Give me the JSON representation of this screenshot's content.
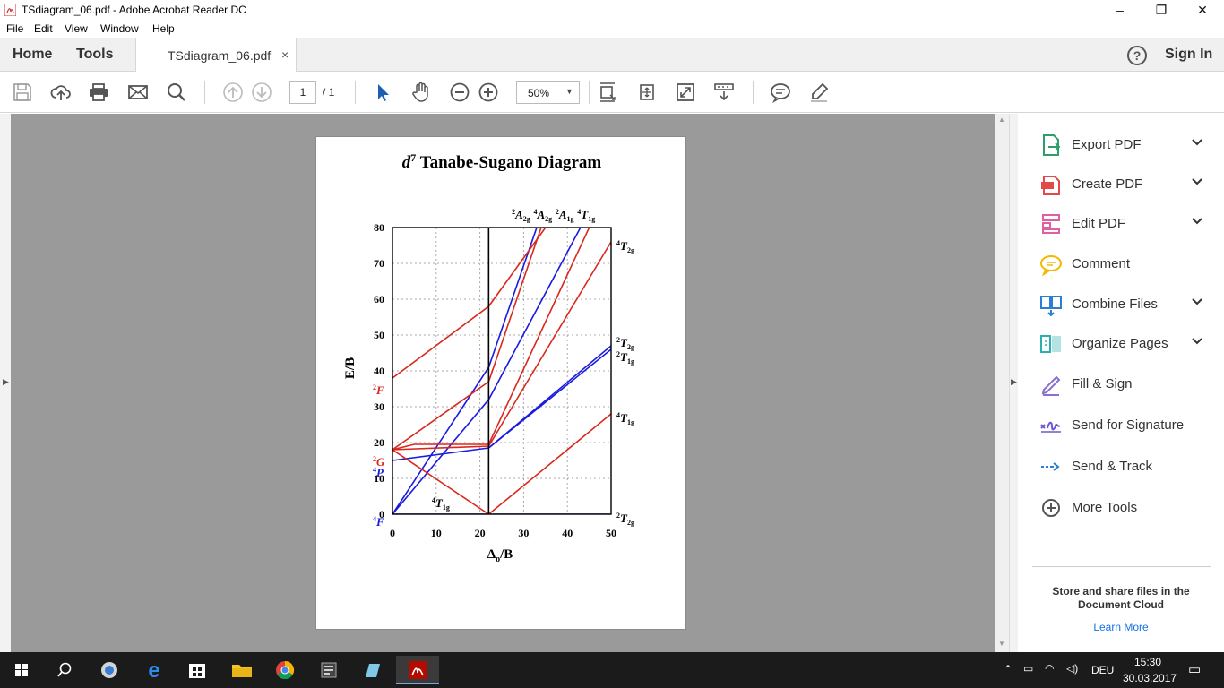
{
  "window": {
    "title": "TSdiagram_06.pdf - Adobe Acrobat Reader DC",
    "minimize": "–",
    "restore": "❐",
    "close": "✕"
  },
  "menu": [
    "File",
    "Edit",
    "View",
    "Window",
    "Help"
  ],
  "tabs": {
    "home": "Home",
    "tools": "Tools",
    "document": "TSdiagram_06.pdf",
    "close": "×",
    "help": "?",
    "signin": "Sign In"
  },
  "toolbar": {
    "page_current": "1",
    "page_total": "/ 1",
    "zoom": "50%",
    "icons": [
      "save-icon",
      "cloud-upload-icon",
      "print-icon",
      "email-icon",
      "search-icon",
      "prev-page-icon",
      "next-page-icon",
      "select-cursor-icon",
      "hand-icon",
      "zoom-out-icon",
      "zoom-in-icon",
      "fit-page-icon",
      "full-screen-icon",
      "read-mode-icon",
      "scroll-mode-icon",
      "comment-icon",
      "highlight-icon"
    ]
  },
  "document": {
    "title_italic": "d",
    "title_super": "7",
    "title_rest": " Tanabe-Sugano Diagram",
    "ylabel": "E/B",
    "xlabel": "Δ",
    "xlabel_sub": "o",
    "xlabel_rest": "/B"
  },
  "chart_data": {
    "type": "line",
    "title": "d7 Tanabe-Sugano Diagram",
    "xlabel": "Δo/B",
    "ylabel": "E/B",
    "xlim": [
      0,
      50
    ],
    "ylim": [
      0,
      80
    ],
    "xticks": [
      0,
      10,
      20,
      30,
      40,
      50
    ],
    "yticks": [
      0,
      10,
      20,
      30,
      40,
      50,
      60,
      70,
      80
    ],
    "grid": true,
    "critical_x": 22,
    "free_ion_terms": [
      {
        "sym": "F",
        "mult": "2",
        "y": 38,
        "color": "#d9281c"
      },
      {
        "sym": "G",
        "mult": "2",
        "y": 18,
        "color": "#d9281c"
      },
      {
        "sym": "P",
        "mult": "4",
        "y": 15,
        "color": "#1a1ae0"
      },
      {
        "sym": "F",
        "mult": "4",
        "y": 0,
        "color": "#1a1ae0"
      }
    ],
    "inner_labels": [
      {
        "mult": "4",
        "sym": "T",
        "sub": "1g",
        "x": 9,
        "y": 2,
        "color": "#000"
      }
    ],
    "right_labels": [
      {
        "mult": "2",
        "sym": "A",
        "sub": "2g",
        "pos": "top-1"
      },
      {
        "mult": "4",
        "sym": "A",
        "sub": "2g",
        "pos": "top-2"
      },
      {
        "mult": "2",
        "sym": "A",
        "sub": "1g",
        "pos": "top-3"
      },
      {
        "mult": "4",
        "sym": "T",
        "sub": "1g",
        "pos": "top-4"
      },
      {
        "mult": "4",
        "sym": "T",
        "sub": "2g",
        "y": 75
      },
      {
        "mult": "2",
        "sym": "T",
        "sub": "2g",
        "y": 48
      },
      {
        "mult": "2",
        "sym": "T",
        "sub": "1g",
        "y": 44
      },
      {
        "mult": "4",
        "sym": "T",
        "sub": "1g",
        "y": 27
      },
      {
        "mult": "2",
        "sym": "T",
        "sub": "2g",
        "y": -1
      }
    ],
    "series": [
      {
        "color": "#1a1ae0",
        "points": [
          [
            0,
            0
          ],
          [
            50,
            0
          ]
        ]
      },
      {
        "color": "#1a1ae0",
        "points": [
          [
            0,
            0
          ],
          [
            22,
            41
          ],
          [
            33,
            80
          ]
        ]
      },
      {
        "color": "#1a1ae0",
        "points": [
          [
            0,
            15
          ],
          [
            22,
            18.5
          ],
          [
            50,
            47
          ]
        ]
      },
      {
        "color": "#1a1ae0",
        "points": [
          [
            0,
            0
          ],
          [
            22,
            32
          ],
          [
            43,
            80
          ]
        ]
      },
      {
        "color": "#1a1ae0",
        "points": [
          [
            22,
            18.5
          ],
          [
            50,
            46
          ]
        ]
      },
      {
        "color": "#d9281c",
        "points": [
          [
            0,
            38
          ],
          [
            22,
            58
          ],
          [
            35,
            80
          ]
        ]
      },
      {
        "color": "#d9281c",
        "points": [
          [
            0,
            18
          ],
          [
            22,
            37
          ],
          [
            34,
            80
          ]
        ]
      },
      {
        "color": "#d9281c",
        "points": [
          [
            0,
            18
          ],
          [
            22,
            0
          ],
          [
            50,
            28
          ]
        ]
      },
      {
        "color": "#d9281c",
        "points": [
          [
            0,
            18
          ],
          [
            5,
            19.5
          ],
          [
            22,
            19.5
          ],
          [
            45,
            80
          ]
        ]
      },
      {
        "color": "#d9281c",
        "points": [
          [
            0,
            18
          ],
          [
            22,
            19
          ],
          [
            50,
            76
          ]
        ]
      }
    ]
  },
  "sidebar": {
    "items": [
      {
        "label": "Export PDF",
        "icon": "export-pdf-icon",
        "chevron": true,
        "color": "#2e9e6b"
      },
      {
        "label": "Create PDF",
        "icon": "create-pdf-icon",
        "chevron": true,
        "color": "#e24a4a"
      },
      {
        "label": "Edit PDF",
        "icon": "edit-pdf-icon",
        "chevron": true,
        "color": "#e05fa0"
      },
      {
        "label": "Comment",
        "icon": "comment-icon",
        "chevron": false,
        "color": "#f5b800"
      },
      {
        "label": "Combine Files",
        "icon": "combine-files-icon",
        "chevron": true,
        "color": "#2a7fd4"
      },
      {
        "label": "Organize Pages",
        "icon": "organize-pages-icon",
        "chevron": true,
        "color": "#2ab0b0"
      },
      {
        "label": "Fill & Sign",
        "icon": "fill-sign-icon",
        "chevron": false,
        "color": "#8a6fd0"
      },
      {
        "label": "Send for Signature",
        "icon": "send-signature-icon",
        "chevron": false,
        "color": "#6a5ad0"
      },
      {
        "label": "Send & Track",
        "icon": "send-track-icon",
        "chevron": false,
        "color": "#2a7fd4"
      },
      {
        "label": "More Tools",
        "icon": "more-tools-icon",
        "chevron": false,
        "color": "#555555"
      }
    ],
    "cloud_text": "Store and share files in the Document Cloud",
    "learn_more": "Learn More"
  },
  "taskbar": {
    "apps": [
      "start-icon",
      "search-icon",
      "cortana-icon",
      "edge-icon",
      "store-icon",
      "file-explorer-icon",
      "chrome-icon",
      "app-icon",
      "app2-icon",
      "acrobat-icon"
    ],
    "language": "DEU",
    "time": "15:30",
    "date": "30.03.2017"
  }
}
